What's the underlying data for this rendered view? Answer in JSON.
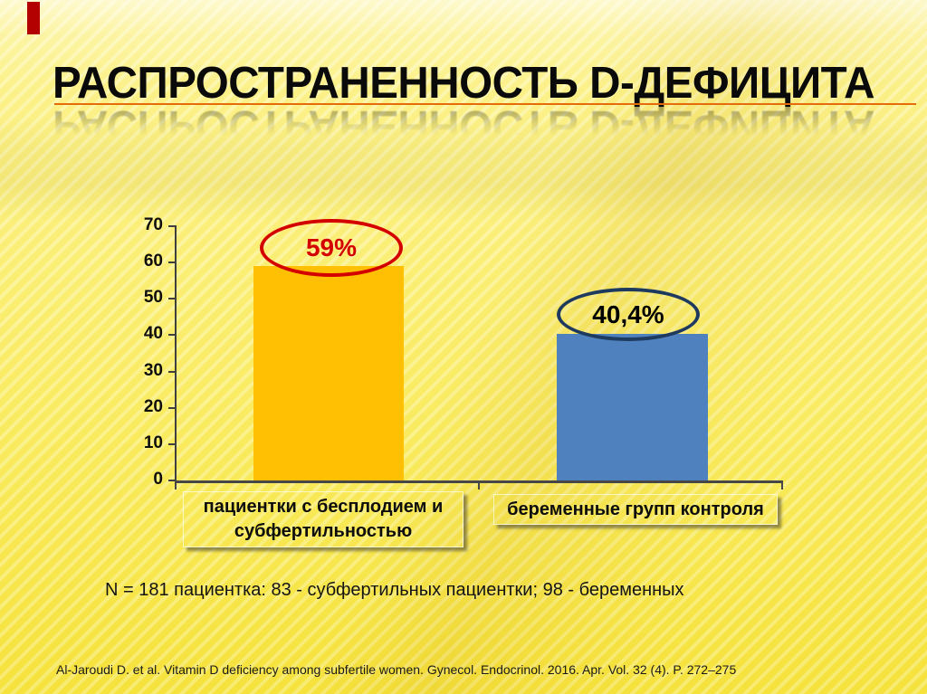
{
  "slide": {
    "title": "РАСПРОСТРАНЕННОСТЬ D-ДЕФИЦИТА",
    "note": "N = 181 пациентка: 83 - субфертильных пациентки; 98 - беременных",
    "citation": "Al-Jaroudi D. et al. Vitamin D deficiency among subfertile women. Gynecol. Endocrinol. 2016. Apr. Vol. 32 (4). P. 272–275",
    "accent_colors": {
      "title_underline": "#E46C0A",
      "corner_accent": "#B30000"
    }
  },
  "chart_data": {
    "type": "bar",
    "categories": [
      "пациентки с бесплодием и субфертильностью",
      "беременные групп контроля"
    ],
    "values": [
      59,
      40.4
    ],
    "value_labels": [
      "59%",
      "40,4%"
    ],
    "bar_colors": [
      "#FFC003",
      "#4E81BD"
    ],
    "ellipse_colors": [
      "#D40000",
      "#1F3A5F"
    ],
    "value_label_colors": [
      "#D40000",
      "#000000"
    ],
    "title": "",
    "xlabel": "",
    "ylabel": "",
    "ylim": [
      0,
      70
    ],
    "yticks": [
      70,
      60,
      50,
      40,
      30,
      20,
      10,
      0
    ],
    "grid": false,
    "legend": "none"
  }
}
